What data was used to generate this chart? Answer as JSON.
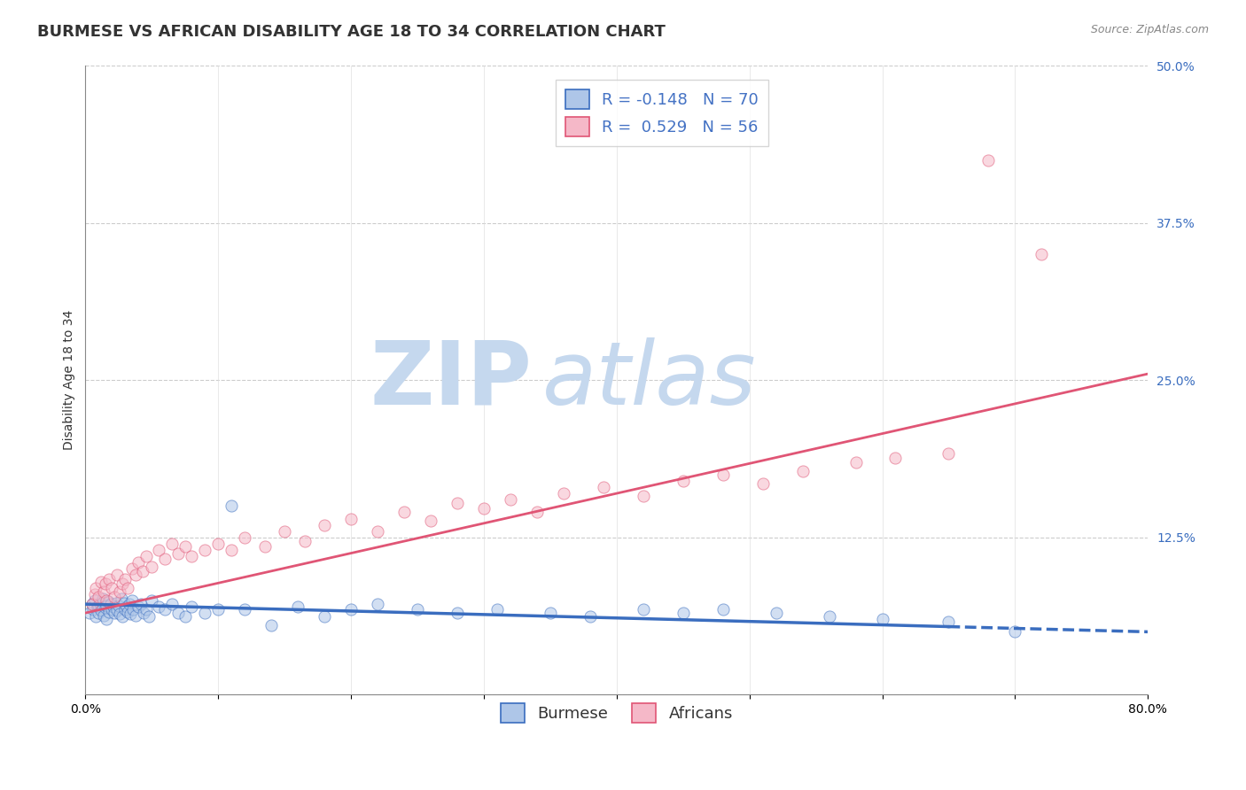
{
  "title": "BURMESE VS AFRICAN DISABILITY AGE 18 TO 34 CORRELATION CHART",
  "source": "Source: ZipAtlas.com",
  "ylabel": "Disability Age 18 to 34",
  "xlim": [
    0.0,
    0.8
  ],
  "ylim": [
    0.0,
    0.5
  ],
  "xticks": [
    0.0,
    0.1,
    0.2,
    0.3,
    0.4,
    0.5,
    0.6,
    0.7,
    0.8
  ],
  "yticks": [
    0.0,
    0.125,
    0.25,
    0.375,
    0.5
  ],
  "burmese_color": "#aec6e8",
  "african_color": "#f5b8c8",
  "burmese_line_color": "#3a6dbf",
  "african_line_color": "#e05575",
  "R_burmese": -0.148,
  "N_burmese": 70,
  "R_african": 0.529,
  "N_african": 56,
  "burmese_scatter_x": [
    0.003,
    0.005,
    0.006,
    0.007,
    0.008,
    0.009,
    0.01,
    0.01,
    0.011,
    0.012,
    0.013,
    0.014,
    0.015,
    0.016,
    0.016,
    0.017,
    0.018,
    0.019,
    0.02,
    0.021,
    0.022,
    0.023,
    0.024,
    0.025,
    0.026,
    0.027,
    0.028,
    0.029,
    0.03,
    0.031,
    0.032,
    0.033,
    0.034,
    0.035,
    0.036,
    0.038,
    0.04,
    0.042,
    0.044,
    0.046,
    0.048,
    0.05,
    0.055,
    0.06,
    0.065,
    0.07,
    0.075,
    0.08,
    0.09,
    0.1,
    0.11,
    0.12,
    0.14,
    0.16,
    0.18,
    0.2,
    0.22,
    0.25,
    0.28,
    0.31,
    0.35,
    0.38,
    0.42,
    0.45,
    0.48,
    0.52,
    0.56,
    0.6,
    0.65,
    0.7
  ],
  "burmese_scatter_y": [
    0.065,
    0.072,
    0.068,
    0.075,
    0.062,
    0.07,
    0.071,
    0.065,
    0.073,
    0.067,
    0.076,
    0.063,
    0.069,
    0.071,
    0.06,
    0.074,
    0.066,
    0.072,
    0.068,
    0.07,
    0.065,
    0.073,
    0.067,
    0.071,
    0.064,
    0.076,
    0.062,
    0.073,
    0.068,
    0.07,
    0.066,
    0.072,
    0.064,
    0.075,
    0.068,
    0.063,
    0.07,
    0.072,
    0.065,
    0.068,
    0.062,
    0.075,
    0.07,
    0.068,
    0.072,
    0.065,
    0.062,
    0.07,
    0.065,
    0.068,
    0.15,
    0.068,
    0.055,
    0.07,
    0.062,
    0.068,
    0.072,
    0.068,
    0.065,
    0.068,
    0.065,
    0.062,
    0.068,
    0.065,
    0.068,
    0.065,
    0.062,
    0.06,
    0.058,
    0.05
  ],
  "african_scatter_x": [
    0.005,
    0.007,
    0.008,
    0.01,
    0.012,
    0.014,
    0.015,
    0.016,
    0.018,
    0.02,
    0.022,
    0.024,
    0.026,
    0.028,
    0.03,
    0.032,
    0.035,
    0.038,
    0.04,
    0.043,
    0.046,
    0.05,
    0.055,
    0.06,
    0.065,
    0.07,
    0.075,
    0.08,
    0.09,
    0.1,
    0.11,
    0.12,
    0.135,
    0.15,
    0.165,
    0.18,
    0.2,
    0.22,
    0.24,
    0.26,
    0.28,
    0.3,
    0.32,
    0.34,
    0.36,
    0.39,
    0.42,
    0.45,
    0.48,
    0.51,
    0.54,
    0.58,
    0.61,
    0.65,
    0.68,
    0.72
  ],
  "african_scatter_y": [
    0.072,
    0.08,
    0.085,
    0.078,
    0.09,
    0.082,
    0.088,
    0.075,
    0.092,
    0.085,
    0.078,
    0.095,
    0.082,
    0.088,
    0.092,
    0.085,
    0.1,
    0.095,
    0.105,
    0.098,
    0.11,
    0.102,
    0.115,
    0.108,
    0.12,
    0.112,
    0.118,
    0.11,
    0.115,
    0.12,
    0.115,
    0.125,
    0.118,
    0.13,
    0.122,
    0.135,
    0.14,
    0.13,
    0.145,
    0.138,
    0.152,
    0.148,
    0.155,
    0.145,
    0.16,
    0.165,
    0.158,
    0.17,
    0.175,
    0.168,
    0.178,
    0.185,
    0.188,
    0.192,
    0.425,
    0.35
  ],
  "background_color": "#ffffff",
  "grid_color": "#cccccc",
  "watermark_zip": "ZIP",
  "watermark_atlas": "atlas",
  "watermark_color_zip": "#c5d8ee",
  "watermark_color_atlas": "#c5d8ee",
  "title_fontsize": 13,
  "label_fontsize": 10,
  "tick_fontsize": 10,
  "legend_fontsize": 13,
  "scatter_alpha": 0.55,
  "scatter_size": 90,
  "burmese_line_solid_end": 0.65,
  "burmese_line_dash_end": 0.8,
  "african_line_end": 0.8,
  "burmese_line_y0": 0.072,
  "burmese_line_y1": 0.05,
  "african_line_y0": 0.065,
  "african_line_y1": 0.255
}
